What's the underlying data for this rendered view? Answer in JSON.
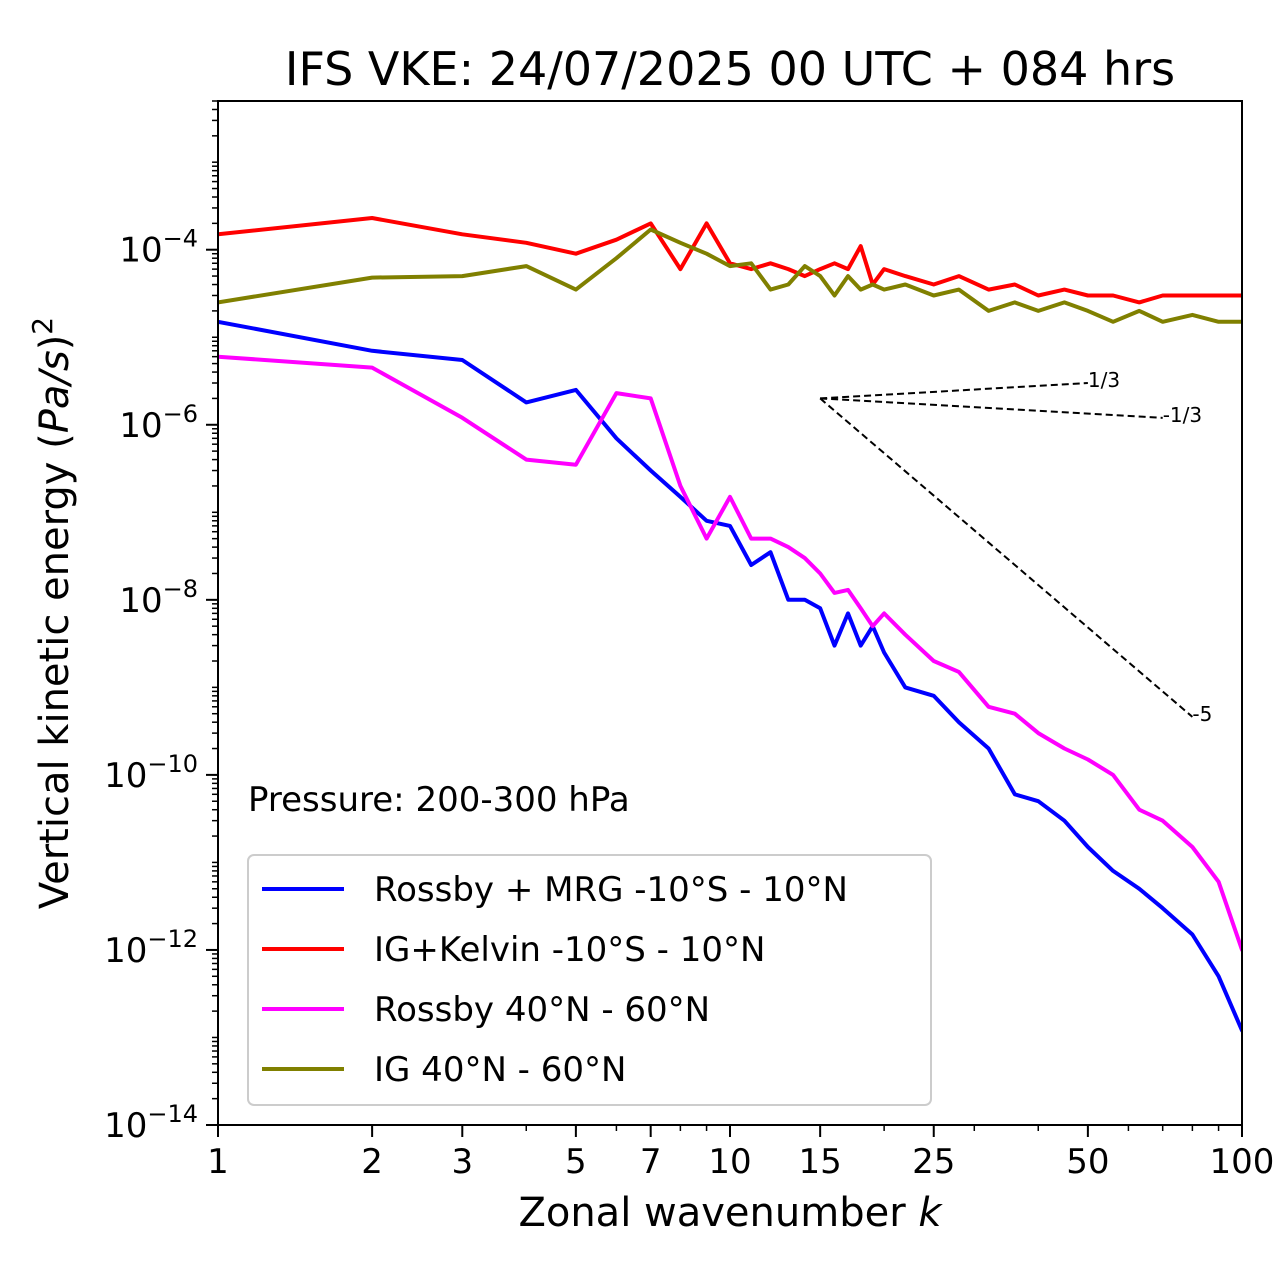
{
  "chart_data": {
    "type": "line",
    "title": "IFS VKE: 24/07/2025 00 UTC + 084 hrs",
    "xlabel": "Zonal wavenumber k",
    "ylabel": "Vertical kinetic energy (Pa/s)^2",
    "xscale": "log",
    "yscale": "log",
    "xlim": [
      1,
      100
    ],
    "ylim": [
      1e-14,
      0.005
    ],
    "x_ticks": [
      1,
      2,
      3,
      5,
      7,
      10,
      15,
      25,
      50,
      100
    ],
    "x_tick_labels": [
      "1",
      "2",
      "3",
      "5",
      "7",
      "10",
      "15",
      "25",
      "50",
      "100"
    ],
    "y_ticks": [
      {
        "value": 0.0001,
        "base": "10",
        "exp": "−4"
      },
      {
        "value": 1e-06,
        "base": "10",
        "exp": "−6"
      },
      {
        "value": 1e-08,
        "base": "10",
        "exp": "−8"
      },
      {
        "value": 1e-10,
        "base": "10",
        "exp": "−10"
      },
      {
        "value": 1e-12,
        "base": "10",
        "exp": "−12"
      },
      {
        "value": 1e-14,
        "base": "10",
        "exp": "−14"
      }
    ],
    "annotation": "Pressure: 200-300 hPa",
    "legend_position": "lower-left",
    "series": [
      {
        "name": "Rossby + MRG -10°S - 10°N",
        "color": "#0000ff",
        "x": [
          1,
          2,
          3,
          4,
          5,
          6,
          7,
          8,
          9,
          10,
          11,
          12,
          13,
          14,
          15,
          16,
          17,
          18,
          19,
          20,
          22,
          25,
          28,
          32,
          36,
          40,
          45,
          50,
          56,
          63,
          70,
          80,
          90,
          100
        ],
        "y": [
          1.5e-05,
          7e-06,
          5.5e-06,
          1.8e-06,
          2.5e-06,
          7e-07,
          3e-07,
          1.5e-07,
          8e-08,
          7e-08,
          2.5e-08,
          3.5e-08,
          1e-08,
          1e-08,
          8e-09,
          3e-09,
          7e-09,
          3e-09,
          5e-09,
          2.5e-09,
          1e-09,
          8e-10,
          4e-10,
          2e-10,
          6e-11,
          5e-11,
          3e-11,
          1.5e-11,
          8e-12,
          5e-12,
          3e-12,
          1.5e-12,
          5e-13,
          1.2e-13
        ]
      },
      {
        "name": "IG+Kelvin -10°S - 10°N",
        "color": "#ff0000",
        "x": [
          1,
          2,
          3,
          4,
          5,
          6,
          7,
          8,
          9,
          10,
          11,
          12,
          13,
          14,
          15,
          16,
          17,
          18,
          19,
          20,
          22,
          25,
          28,
          32,
          36,
          40,
          45,
          50,
          56,
          63,
          70,
          80,
          90,
          100
        ],
        "y": [
          0.00015,
          0.00023,
          0.00015,
          0.00012,
          9e-05,
          0.00013,
          0.0002,
          6e-05,
          0.0002,
          7e-05,
          6e-05,
          7e-05,
          6e-05,
          5e-05,
          6e-05,
          7e-05,
          6e-05,
          0.00011,
          4e-05,
          6e-05,
          5e-05,
          4e-05,
          5e-05,
          3.5e-05,
          4e-05,
          3e-05,
          3.5e-05,
          3e-05,
          3e-05,
          2.5e-05,
          3e-05,
          3e-05,
          3e-05,
          3e-05
        ]
      },
      {
        "name": "Rossby 40°N - 60°N",
        "color": "#ff00ff",
        "x": [
          1,
          2,
          3,
          4,
          5,
          6,
          7,
          8,
          9,
          10,
          11,
          12,
          13,
          14,
          15,
          16,
          17,
          18,
          19,
          20,
          22,
          25,
          28,
          32,
          36,
          40,
          45,
          50,
          56,
          63,
          70,
          80,
          90,
          100
        ],
        "y": [
          6e-06,
          4.5e-06,
          1.2e-06,
          4e-07,
          3.5e-07,
          2.3e-06,
          2e-06,
          2e-07,
          5e-08,
          1.5e-07,
          5e-08,
          5e-08,
          4e-08,
          3e-08,
          2e-08,
          1.2e-08,
          1.3e-08,
          8e-09,
          5e-09,
          7e-09,
          4e-09,
          2e-09,
          1.5e-09,
          6e-10,
          5e-10,
          3e-10,
          2e-10,
          1.5e-10,
          1e-10,
          4e-11,
          3e-11,
          1.5e-11,
          6e-12,
          1e-12
        ]
      },
      {
        "name": "IG 40°N - 60°N",
        "color": "#808000",
        "x": [
          1,
          2,
          3,
          4,
          5,
          6,
          7,
          8,
          9,
          10,
          11,
          12,
          13,
          14,
          15,
          16,
          17,
          18,
          19,
          20,
          22,
          25,
          28,
          32,
          36,
          40,
          45,
          50,
          56,
          63,
          70,
          80,
          90,
          100
        ],
        "y": [
          2.5e-05,
          4.8e-05,
          5e-05,
          6.5e-05,
          3.5e-05,
          8e-05,
          0.00017,
          0.00012,
          9e-05,
          6.5e-05,
          7e-05,
          3.5e-05,
          4e-05,
          6.5e-05,
          5e-05,
          3e-05,
          5e-05,
          3.5e-05,
          4e-05,
          3.5e-05,
          4e-05,
          3e-05,
          3.5e-05,
          2e-05,
          2.5e-05,
          2e-05,
          2.5e-05,
          2e-05,
          1.5e-05,
          2e-05,
          1.5e-05,
          1.8e-05,
          1.5e-05,
          1.5e-05
        ]
      }
    ],
    "reference_lines": [
      {
        "label": "1/3",
        "slope": 0.3333,
        "x0": 15,
        "y0": 2e-06,
        "x1": 50,
        "y1": 3e-06
      },
      {
        "label": "-1/3",
        "slope": -0.3333,
        "x0": 15,
        "y0": 2e-06,
        "x1": 70,
        "y1": 1.2e-06
      },
      {
        "label": "-5",
        "slope": -5,
        "x0": 15,
        "y0": 2e-06,
        "x1": 80,
        "y1": 4.6e-10
      }
    ]
  }
}
